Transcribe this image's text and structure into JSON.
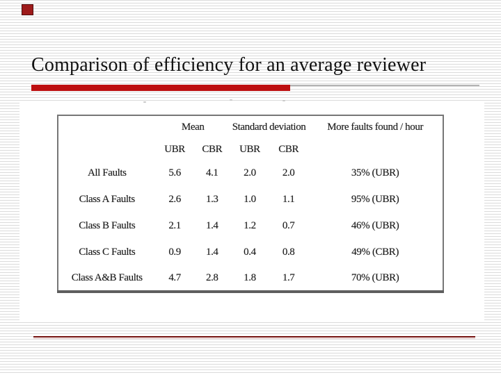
{
  "slide": {
    "title": "Comparison of efficiency for an average reviewer"
  },
  "table": {
    "group_headers": [
      "Mean",
      "Standard deviation",
      "More faults found / hour"
    ],
    "sub_headers": [
      "UBR",
      "CBR",
      "UBR",
      "CBR"
    ],
    "rows": [
      {
        "label": "All Faults",
        "values": [
          "5.6",
          "4.1",
          "2.0",
          "2.0"
        ],
        "more": "35% (UBR)"
      },
      {
        "label": "Class A Faults",
        "values": [
          "2.6",
          "1.3",
          "1.0",
          "1.1"
        ],
        "more": "95% (UBR)"
      },
      {
        "label": "Class B Faults",
        "values": [
          "2.1",
          "1.4",
          "1.2",
          "0.7"
        ],
        "more": "46% (UBR)"
      },
      {
        "label": "Class C Faults",
        "values": [
          "0.9",
          "1.4",
          "0.4",
          "0.8"
        ],
        "more": "49% (CBR)"
      },
      {
        "label": "Class A&B Faults",
        "values": [
          "4.7",
          "2.8",
          "1.8",
          "1.7"
        ],
        "more": "70% (UBR)"
      }
    ]
  },
  "colors": {
    "accent_red": "#bd0f10",
    "corner_square": "#9e1b1b",
    "footer_rule_dark": "#74120f",
    "footer_rule_light": "#e7c6c6",
    "stripe_gray": "#dadada",
    "table_border": "#767676"
  }
}
